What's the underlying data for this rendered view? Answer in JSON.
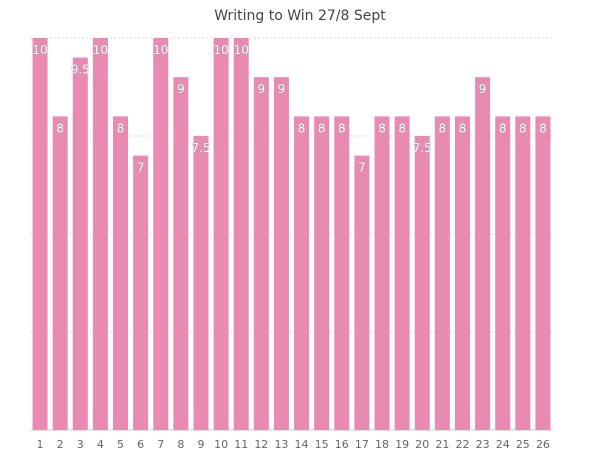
{
  "chart_data": {
    "type": "bar",
    "title": "Writing to Win 27/8 Sept",
    "xlabel": "",
    "ylabel": "",
    "ylim": [
      0,
      10
    ],
    "grid": true,
    "categories": [
      "1",
      "2",
      "3",
      "4",
      "5",
      "6",
      "7",
      "8",
      "9",
      "10",
      "11",
      "12",
      "13",
      "14",
      "15",
      "16",
      "17",
      "18",
      "19",
      "20",
      "21",
      "22",
      "23",
      "24",
      "25",
      "26"
    ],
    "values": [
      10,
      8,
      9.5,
      10,
      8,
      7,
      10,
      9,
      7.5,
      10,
      10,
      9,
      9,
      8,
      8,
      8,
      7,
      8,
      8,
      7.5,
      8,
      8,
      9,
      8,
      8,
      8
    ],
    "data_labels": [
      "10",
      "8",
      "9.5",
      "10",
      "8",
      "7",
      "10",
      "9",
      "7.5",
      "10",
      "10",
      "9",
      "9",
      "8",
      "8",
      "8",
      "7",
      "8",
      "8",
      "7.5",
      "8",
      "8",
      "9",
      "8",
      "8",
      "8"
    ],
    "bar_color": "#e88ab1"
  }
}
